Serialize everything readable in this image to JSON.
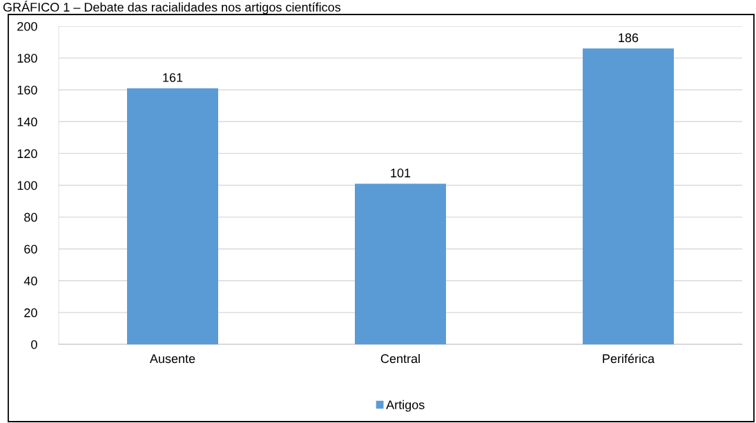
{
  "chart_data": {
    "type": "bar",
    "title": "GRÁFICO 1 – Debate das racialidades nos artigos científicos",
    "categories": [
      "Ausente",
      "Central",
      "Periférica"
    ],
    "series": [
      {
        "name": "Artigos",
        "color": "#5b9bd5",
        "values": [
          161,
          101,
          186
        ]
      }
    ],
    "ylim": [
      0,
      200
    ],
    "yticks": [
      0,
      20,
      40,
      60,
      80,
      100,
      120,
      140,
      160,
      180,
      200
    ],
    "grid": "y",
    "legend": "bottom",
    "data_labels": true
  }
}
